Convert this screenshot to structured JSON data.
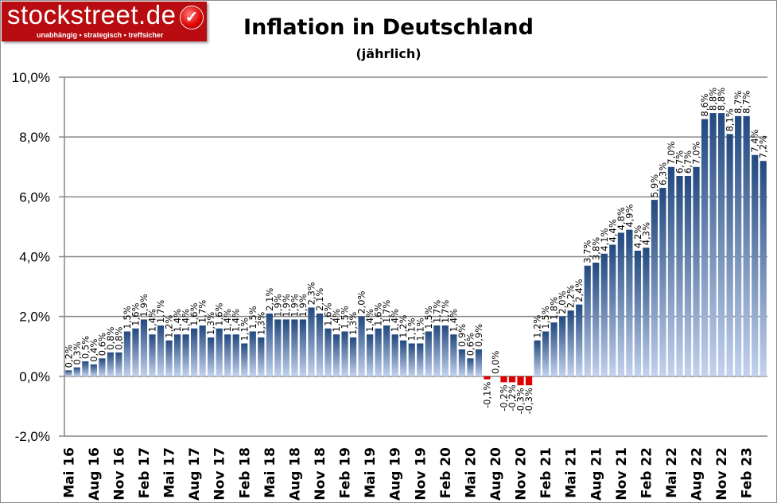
{
  "logo": {
    "text": "stockstreet.de",
    "tagline": "unabhängig • strategisch • treffsicher",
    "icon": "checkmark-icon"
  },
  "chart_data": {
    "type": "bar",
    "title": "Inflation in Deutschland",
    "subtitle": "(jährlich)",
    "xlabel": "",
    "ylabel": "",
    "ylim": [
      -2,
      10
    ],
    "yticks": [
      "-2,0%",
      "0,0%",
      "2,0%",
      "4,0%",
      "6,0%",
      "8,0%",
      "10,0%"
    ],
    "ytick_values": [
      -2,
      0,
      2,
      4,
      6,
      8,
      10
    ],
    "grid": true,
    "x_tick_labels": [
      "Mai 16",
      "Aug 16",
      "Nov 16",
      "Feb 17",
      "Mai 17",
      "Aug 17",
      "Nov 17",
      "Feb 18",
      "Mai 18",
      "Aug 18",
      "Nov 18",
      "Feb 19",
      "Mai 19",
      "Aug 19",
      "Nov 19",
      "Feb 20",
      "Mai 20",
      "Aug 20",
      "Nov 20",
      "Feb 21",
      "Mai 21",
      "Aug 21",
      "Nov 21",
      "Feb 22",
      "Mai 22",
      "Aug 22",
      "Nov 22",
      "Feb 23"
    ],
    "tick_every": 3,
    "colors": {
      "positive_top": "#22497f",
      "positive_bottom": "#c3d2ee",
      "negative": "#e00000"
    },
    "values": [
      0.2,
      0.3,
      0.5,
      0.4,
      0.6,
      0.8,
      0.8,
      1.5,
      1.6,
      1.9,
      1.4,
      1.7,
      1.2,
      1.4,
      1.4,
      1.6,
      1.7,
      1.3,
      1.6,
      1.4,
      1.4,
      1.1,
      1.5,
      1.3,
      2.1,
      1.9,
      1.9,
      1.9,
      1.9,
      2.3,
      2.1,
      1.6,
      1.4,
      1.5,
      1.3,
      2.0,
      1.4,
      1.6,
      1.7,
      1.4,
      1.2,
      1.1,
      1.1,
      1.5,
      1.7,
      1.7,
      1.4,
      0.9,
      0.6,
      0.9,
      -0.1,
      0.0,
      -0.2,
      -0.2,
      -0.3,
      -0.3,
      1.2,
      1.5,
      1.8,
      2.0,
      2.2,
      2.4,
      3.7,
      3.8,
      4.1,
      4.4,
      4.8,
      4.9,
      4.2,
      4.3,
      5.9,
      6.3,
      7.0,
      6.7,
      6.7,
      7.0,
      8.6,
      8.8,
      8.8,
      8.1,
      8.7,
      8.7,
      7.4,
      7.2
    ],
    "labels": [
      "0,2%",
      "0,3%",
      "0,5%",
      "0,4%",
      "0,6%",
      "0,8%",
      "0,8%",
      "1,5%",
      "1,6%",
      "1,9%",
      "1,4%",
      "1,7%",
      "1,2%",
      "1,4%",
      "1,4%",
      "1,6%",
      "1,7%",
      "1,3%",
      "1,6%",
      "1,4%",
      "1,4%",
      "1,1%",
      "1,5%",
      "1,3%",
      "2,1%",
      "1,9%",
      "1,9%",
      "1,9%",
      "1,9%",
      "2,3%",
      "2,1%",
      "1,6%",
      "1,4%",
      "1,5%",
      "1,3%",
      "2,0%",
      "1,4%",
      "1,6%",
      "1,7%",
      "1,4%",
      "1,2%",
      "1,1%",
      "1,1%",
      "1,5%",
      "1,7%",
      "1,7%",
      "1,4%",
      "0,9%",
      "0,6%",
      "0,9%",
      "-0,1%",
      "0,0%",
      "-0,2%",
      "-0,2%",
      "-0,3%",
      "-0,3%",
      "1,2%",
      "1,5%",
      "1,8%",
      "2,0%",
      "2,2%",
      "2,4%",
      "3,7%",
      "3,8%",
      "4,1%",
      "4,4%",
      "4,8%",
      "4,9%",
      "4,2%",
      "4,3%",
      "5,9%",
      "6,3%",
      "7,0%",
      "6,7%",
      "6,7%",
      "7,0%",
      "8,6%",
      "8,8%",
      "8,8%",
      "8,1%",
      "8,7%",
      "8,7%",
      "7,4%",
      "7,2%"
    ]
  }
}
